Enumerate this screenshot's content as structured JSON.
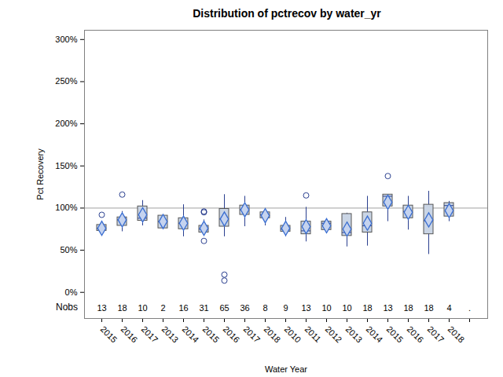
{
  "chart_data": {
    "type": "box",
    "title": "Distribution of pctrecov by water_yr",
    "x_label": "Water Year",
    "y_label": "Pct Recovery",
    "categories": [
      "2015",
      "2016",
      "2017",
      "2013",
      "2014",
      "2015",
      "2016",
      "2017",
      "2018",
      "2010",
      "2011",
      "2012",
      "2013",
      "2014",
      "2015",
      "2016",
      "2017",
      "2018",
      null
    ],
    "boxes": [
      {
        "min": 70,
        "q1": 73,
        "median": 76,
        "q3": 80,
        "max": 84,
        "mean": 76,
        "outliers": [
          92
        ]
      },
      {
        "min": 72,
        "q1": 79,
        "median": 86,
        "q3": 89,
        "max": 96,
        "mean": 86,
        "outliers": [
          116
        ]
      },
      {
        "min": 79,
        "q1": 85,
        "median": 88,
        "q3": 102,
        "max": 109,
        "mean": 92,
        "outliers": []
      },
      {
        "min": 76,
        "q1": 76,
        "median": 84,
        "q3": 91,
        "max": 91,
        "mean": 84,
        "outliers": []
      },
      {
        "min": 66,
        "q1": 75,
        "median": 82,
        "q3": 88,
        "max": 104,
        "mean": 82,
        "outliers": []
      },
      {
        "min": 67,
        "q1": 71,
        "median": 75,
        "q3": 79,
        "max": 86,
        "mean": 76,
        "outliers": [
          95,
          96,
          61
        ]
      },
      {
        "min": 66,
        "q1": 78,
        "median": 87,
        "q3": 99,
        "max": 116,
        "mean": 87,
        "outliers": [
          21,
          14
        ]
      },
      {
        "min": 78,
        "q1": 92,
        "median": 98,
        "q3": 103,
        "max": 114,
        "mean": 98,
        "outliers": []
      },
      {
        "min": 79,
        "q1": 88,
        "median": 92,
        "q3": 95,
        "max": 97,
        "mean": 91,
        "outliers": []
      },
      {
        "min": 66,
        "q1": 72,
        "median": 75,
        "q3": 79,
        "max": 89,
        "mean": 76,
        "outliers": []
      },
      {
        "min": 60,
        "q1": 69,
        "median": 73,
        "q3": 84,
        "max": 101,
        "mean": 78,
        "outliers": [
          115
        ]
      },
      {
        "min": 72,
        "q1": 74,
        "median": 82,
        "q3": 84,
        "max": 86,
        "mean": 79,
        "outliers": []
      },
      {
        "min": 54,
        "q1": 67,
        "median": 71,
        "q3": 93,
        "max": 94,
        "mean": 75,
        "outliers": []
      },
      {
        "min": 55,
        "q1": 71,
        "median": 79,
        "q3": 95,
        "max": 114,
        "mean": 82,
        "outliers": []
      },
      {
        "min": 84,
        "q1": 102,
        "median": 114,
        "q3": 116,
        "max": 116,
        "mean": 107,
        "outliers": [
          138
        ]
      },
      {
        "min": 74,
        "q1": 88,
        "median": 96,
        "q3": 103,
        "max": 114,
        "mean": 95,
        "outliers": []
      },
      {
        "min": 45,
        "q1": 69,
        "median": 85,
        "q3": 104,
        "max": 120,
        "mean": 86,
        "outliers": []
      },
      {
        "min": 84,
        "q1": 90,
        "median": 103,
        "q3": 106,
        "max": 108,
        "mean": 97,
        "outliers": []
      },
      null
    ],
    "nobs_label": "Nobs",
    "nobs": [
      13,
      18,
      10,
      2,
      16,
      31,
      65,
      36,
      8,
      9,
      13,
      10,
      10,
      18,
      13,
      18,
      18,
      4,
      "."
    ],
    "reference_line": 100,
    "color": "#cad5e5",
    "ylim": [
      -31,
      311
    ],
    "yticks": [
      {
        "value": 0,
        "label": "0%"
      },
      {
        "value": 50,
        "label": "50%"
      },
      {
        "value": 100,
        "label": "100%"
      },
      {
        "value": 150,
        "label": "150%"
      },
      {
        "value": 200,
        "label": "200%"
      },
      {
        "value": 250,
        "label": "250%"
      },
      {
        "value": 300,
        "label": "300%"
      }
    ]
  }
}
